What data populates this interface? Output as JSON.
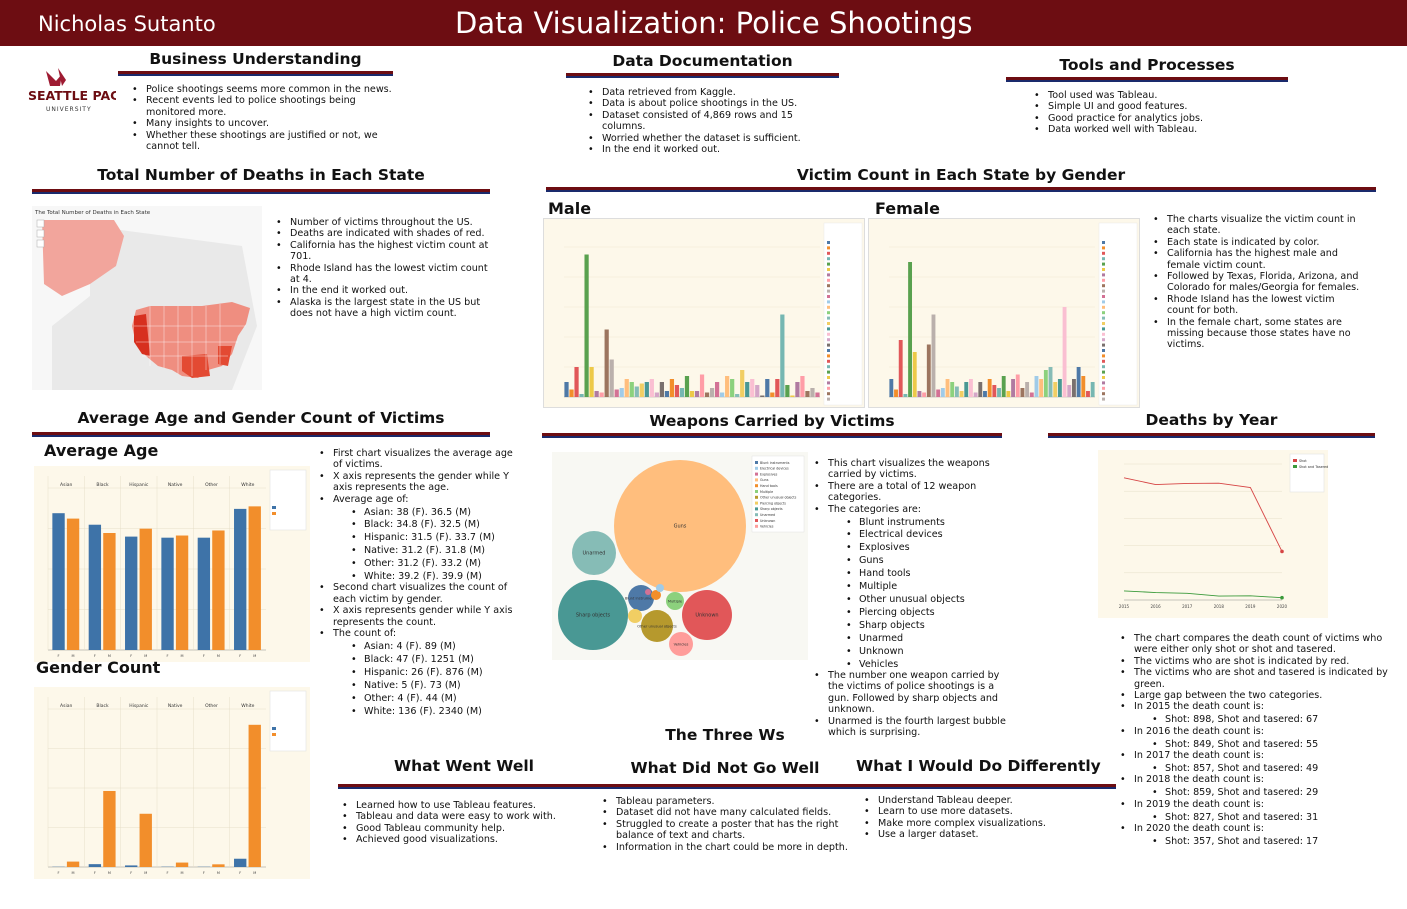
{
  "header": {
    "author": "Nicholas Sutanto",
    "title": "Data Visualization: Police Shootings"
  },
  "logo": {
    "name": "SEATTLE PACIFIC",
    "sub": "UNIVERSITY"
  },
  "business": {
    "title": "Business Understanding",
    "bullets": [
      "Police shootings seems more common in the news.",
      "Recent events led to police shootings being monitored more.",
      "Many insights to uncover.",
      "Whether these shootings are justified or not, we cannot tell."
    ]
  },
  "data_doc": {
    "title": "Data Documentation",
    "bullets": [
      "Data retrieved from Kaggle.",
      "Data is about police shootings in the US.",
      "Dataset consisted of 4,869 rows and 15 columns.",
      "Worried whether the dataset is sufficient.",
      "In the end it worked out."
    ]
  },
  "tools": {
    "title": "Tools and Processes",
    "bullets": [
      "Tool used was Tableau.",
      "Simple UI and good features.",
      "Good practice for analytics jobs.",
      "Data worked well with Tableau."
    ]
  },
  "deaths_state": {
    "title": "Total Number of Deaths in Each State",
    "map_title": "The Total Number of Deaths in Each State",
    "bullets": [
      "Number of victims throughout the US.",
      "Deaths are indicated with shades of red.",
      "California has the highest victim count at 701.",
      "Rhode Island has the lowest victim count at 4.",
      "In the end it worked out.",
      "Alaska is the largest state in the US but does not have a high victim count."
    ]
  },
  "gender_state": {
    "title": "Victim Count in Each State by Gender",
    "male_label": "Male",
    "female_label": "Female",
    "bullets": [
      "The charts visualize the victim count in each state.",
      "Each state is indicated by color.",
      "California has the highest male and female victim count.",
      "Followed by Texas, Florida, Arizona, and Colorado for males/Georgia for females.",
      "Rhode Island has the lowest victim count for both.",
      "In the female chart, some states are missing because those states have no victims."
    ]
  },
  "age_gender": {
    "title": "Average Age and Gender Count of Victims",
    "avg_label": "Average Age",
    "count_label": "Gender Count",
    "bullets_top": [
      "First chart visualizes the average age of victims.",
      "X axis represents the gender while Y axis represents the age."
    ],
    "avg_heading": "Average age of:",
    "avg_items": [
      "Asian: 38 (F). 36.5 (M)",
      "Black: 34.8 (F). 32.5 (M)",
      "Hispanic: 31.5 (F). 33.7 (M)",
      "Native: 31.2 (F). 31.8 (M)",
      "Other: 31.2 (F). 33.2 (M)",
      "White: 39.2 (F). 39.9 (M)"
    ],
    "bullets_mid": [
      "Second chart visualizes the count of each victim by gender.",
      "X axis represents gender while Y axis represents the count."
    ],
    "count_heading": "The count of:",
    "count_items": [
      "Asian: 4 (F). 89 (M)",
      "Black: 47 (F). 1251 (M)",
      "Hispanic: 26 (F). 876 (M)",
      "Native: 5 (F). 73 (M)",
      "Other: 4 (F). 44 (M)",
      "White: 136 (F). 2340 (M)"
    ]
  },
  "weapons": {
    "title": "Weapons Carried by Victims",
    "bullets_top": [
      "This chart visualizes the weapons carried by victims.",
      "There are a total of 12 weapon categories."
    ],
    "cat_heading": "The categories are:",
    "categories": [
      "Blunt instruments",
      "Electrical devices",
      "Explosives",
      "Guns",
      "Hand tools",
      "Multiple",
      "Other unusual objects",
      "Piercing objects",
      "Sharp objects",
      "Unarmed",
      "Unknown",
      "Vehicles"
    ],
    "bullets_bottom": [
      "The number one weapon carried by the victims of police shootings is a gun. Followed by sharp objects and unknown.",
      "Unarmed is the fourth largest bubble which is surprising."
    ]
  },
  "years": {
    "title": "Deaths by Year",
    "bullets": [
      "The chart compares the death count of victims who were either only shot or shot and tasered.",
      "The victims who are shot is indicated by red.",
      "The victims who are shot and tasered is indicated by green.",
      "Large gap between the two categories."
    ],
    "year_items": [
      {
        "label": "In 2015 the death count is:",
        "value": "Shot: 898, Shot and tasered: 67"
      },
      {
        "label": "In 2016 the death count is:",
        "value": "Shot: 849, Shot and tasered: 55"
      },
      {
        "label": "In 2017 the death count is:",
        "value": "Shot: 857, Shot and tasered: 49"
      },
      {
        "label": "In 2018 the death count is:",
        "value": "Shot: 859, Shot and tasered: 29"
      },
      {
        "label": "In 2019 the death count is:",
        "value": "Shot: 827, Shot and tasered: 31"
      },
      {
        "label": "In 2020 the death count is:",
        "value": "Shot: 357, Shot and tasered: 17"
      }
    ]
  },
  "three_ws": {
    "title": "The Three Ws",
    "well": {
      "title": "What Went Well",
      "bullets": [
        "Learned how to use Tableau features.",
        "Tableau and data were easy to work with.",
        "Good Tableau community help.",
        "Achieved good visualizations."
      ]
    },
    "not_well": {
      "title": "What Did Not Go Well",
      "bullets": [
        "Tableau parameters.",
        "Dataset did not have many calculated fields.",
        "Struggled to create a poster that has the right balance of text and charts.",
        "Information in the chart could be more in depth."
      ]
    },
    "differently": {
      "title": "What I Would Do Differently",
      "bullets": [
        "Understand Tableau deeper.",
        "Learn to use more datasets.",
        "Make more complex visualizations.",
        "Use a larger dataset."
      ]
    }
  },
  "colors": {
    "maroon": "#6d0d12",
    "navy": "#1a2a6c",
    "female_bar": "#3e73a8",
    "male_bar": "#f28e2b",
    "shot_line": "#d64545",
    "tasered_line": "#3a9a3a"
  },
  "chart_data": [
    {
      "type": "bar",
      "name": "average-age",
      "categories": [
        "Asian",
        "Black",
        "Hispanic",
        "Native",
        "Other",
        "White"
      ],
      "series": [
        {
          "name": "F",
          "values": [
            38,
            34.8,
            31.5,
            31.2,
            31.2,
            39.2
          ]
        },
        {
          "name": "M",
          "values": [
            36.5,
            32.5,
            33.7,
            31.8,
            33.2,
            39.9
          ]
        }
      ],
      "ylim": [
        0,
        45
      ]
    },
    {
      "type": "bar",
      "name": "gender-count",
      "categories": [
        "Asian",
        "Black",
        "Hispanic",
        "Native",
        "Other",
        "White"
      ],
      "series": [
        {
          "name": "F",
          "values": [
            4,
            47,
            26,
            5,
            4,
            136
          ]
        },
        {
          "name": "M",
          "values": [
            89,
            1251,
            876,
            73,
            44,
            2340
          ]
        }
      ],
      "ylim": [
        0,
        2600
      ]
    },
    {
      "type": "line",
      "name": "deaths-by-year",
      "x": [
        2015,
        2016,
        2017,
        2018,
        2019,
        2020
      ],
      "series": [
        {
          "name": "Shot",
          "values": [
            898,
            849,
            857,
            859,
            827,
            357
          ]
        },
        {
          "name": "Shot and Tasered",
          "values": [
            67,
            55,
            49,
            29,
            31,
            17
          ]
        }
      ],
      "ylim": [
        0,
        1000
      ]
    },
    {
      "type": "bubble",
      "name": "weapons",
      "labels": [
        "Guns",
        "Sharp objects",
        "Unknown",
        "Unarmed",
        "Other unusual objects",
        "Blunt instruments",
        "Vehicles",
        "Multiple",
        "Piercing objects",
        "Hand tools",
        "Electrical devices",
        "Explosives"
      ],
      "colors": [
        "#ffbe7d",
        "#499894",
        "#e15759",
        "#86bcb6",
        "#b6992d",
        "#4e79a7",
        "#ff9d9a",
        "#8cd17d",
        "#f1ce63",
        "#f28e2b",
        "#a0cbe8",
        "#d37295"
      ]
    }
  ]
}
